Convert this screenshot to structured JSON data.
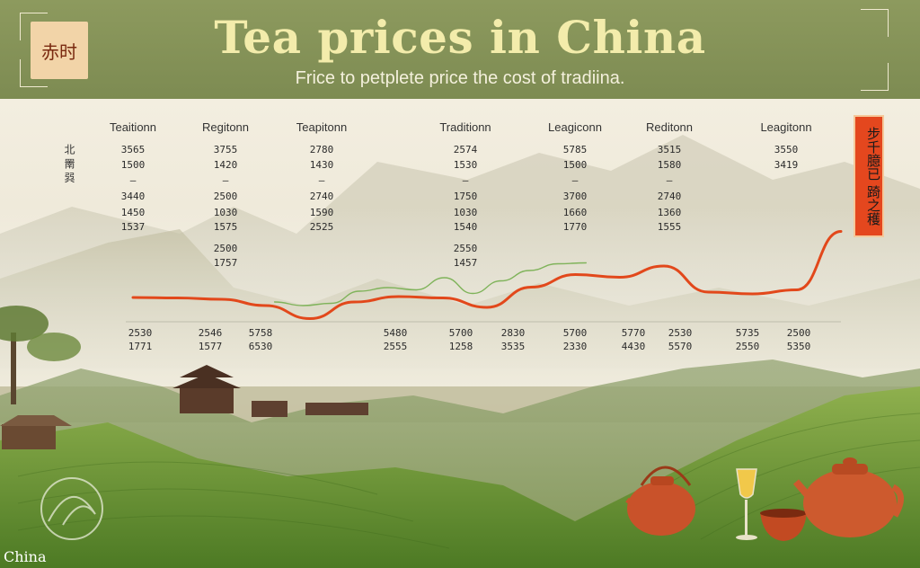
{
  "header": {
    "title": "Tea prices in China",
    "subtitle": "Frice to petplete price the cost of tradiina.",
    "seal_text": "赤时"
  },
  "side_box_text": "步千臆已 踦之穫",
  "side_left_text": "北 罱 㢲",
  "footer_label": "China",
  "colors": {
    "header_bg": "#7d8b52",
    "title": "#f3ecab",
    "main_line": "#e2481b",
    "secondary_line": "#7fb35a",
    "accent_box": "#e4471e"
  },
  "chart_data": {
    "type": "line",
    "title": "Tea prices in China",
    "subtitle": "Frice to petplete price the cost of tradiina.",
    "column_headers": [
      "Teaitionn",
      "Regitonn",
      "Teapitonn",
      "Traditionn",
      "Leagiconn",
      "Reditonn",
      "Leagitonn"
    ],
    "upper_labels": [
      [
        "3565",
        "1500",
        "—",
        "3440",
        "1450",
        "1537"
      ],
      [
        "3755",
        "1420",
        "—",
        "2500",
        "1030",
        "1575",
        "2500",
        "1757"
      ],
      [
        "2780",
        "1430",
        "—",
        "2740",
        "1590",
        "2525"
      ],
      [
        "2574",
        "1530",
        "—",
        "1750",
        "1030",
        "1540",
        "2550",
        "1457"
      ],
      [
        "5785",
        "1500",
        "—",
        "3700",
        "1660",
        "1770"
      ],
      [
        "3515",
        "1580",
        "—",
        "2740",
        "1360",
        "1555"
      ],
      [
        "3550",
        "3419"
      ]
    ],
    "baseline_labels": [
      [
        "2530",
        "1771"
      ],
      [
        "2546",
        "1577"
      ],
      [
        "5758",
        "6530"
      ],
      [
        "5480",
        "2555"
      ],
      [
        "5700",
        "1258"
      ],
      [
        "2830",
        "3535"
      ],
      [
        "5700",
        "2330"
      ],
      [
        "5770",
        "4430"
      ],
      [
        "2530",
        "5570"
      ],
      [
        "5735",
        "2550"
      ],
      [
        "2500",
        "5350"
      ]
    ],
    "series": [
      {
        "color": "#e2481b",
        "x": [
          0,
          1,
          2,
          3,
          4,
          5,
          6,
          7,
          8,
          9,
          10,
          11,
          12,
          13,
          14,
          15,
          16
        ],
        "values": [
          2480,
          2470,
          2440,
          2300,
          2010,
          2380,
          2500,
          2470,
          2260,
          2710,
          2990,
          2930,
          3180,
          2600,
          2560,
          2650,
          3950
        ]
      },
      {
        "color": "#7fb35a",
        "x": [
          0,
          1,
          2,
          3,
          4,
          5,
          6,
          7,
          8,
          9,
          10,
          11
        ],
        "values": [
          2380,
          2300,
          2350,
          2620,
          2700,
          2650,
          2920,
          2570,
          2850,
          3080,
          3230,
          3250
        ]
      }
    ],
    "ylim": [
      1500,
      4500
    ],
    "grid": false,
    "legend": "none"
  }
}
